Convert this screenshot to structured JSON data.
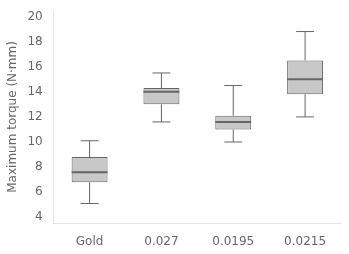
{
  "chart_data": {
    "type": "box",
    "categories": [
      "Gold",
      "0.027",
      "0.0195",
      "0.0215"
    ],
    "box_data": [
      {
        "whislo": 5.1,
        "q1": 6.8,
        "med": 7.6,
        "q3": 8.8,
        "whishi": 10.1
      },
      {
        "whislo": 11.6,
        "q1": 13.0,
        "med": 14.0,
        "q3": 14.3,
        "whishi": 15.5
      },
      {
        "whislo": 10.0,
        "q1": 11.0,
        "med": 11.6,
        "q3": 12.1,
        "whishi": 14.5
      },
      {
        "whislo": 12.0,
        "q1": 13.8,
        "med": 15.0,
        "q3": 16.5,
        "whishi": 18.8
      }
    ],
    "ylabel": "Maximum torque (N·mm)",
    "ylim": [
      3.5,
      20.5
    ],
    "yticks": [
      4,
      6,
      8,
      10,
      12,
      14,
      16,
      18,
      20
    ],
    "color": "#c8c8c8",
    "grid": false
  }
}
